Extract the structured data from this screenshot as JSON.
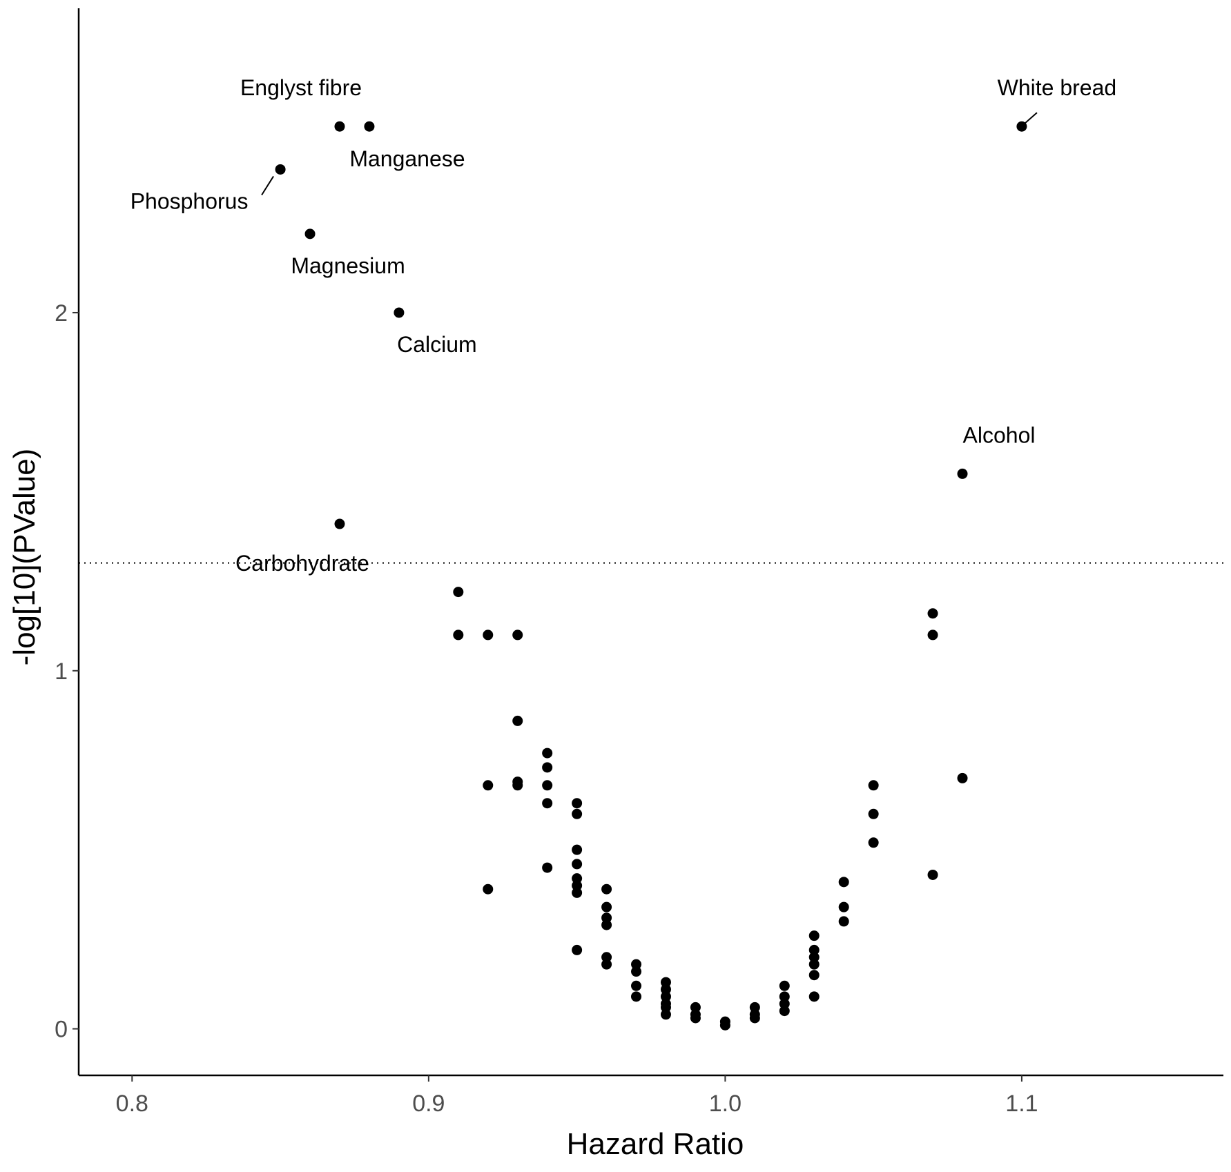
{
  "chart_data": {
    "type": "scatter",
    "title": "",
    "xlabel": "Hazard Ratio",
    "ylabel": "-log[10](PValue)",
    "xlim": [
      0.782,
      1.168
    ],
    "ylim": [
      -0.13,
      2.85
    ],
    "xticks": [
      0.8,
      0.9,
      1.0,
      1.1
    ],
    "xtick_labels": [
      "0.8",
      "0.9",
      "1.0",
      "1.1"
    ],
    "yticks": [
      0,
      1,
      2
    ],
    "ytick_labels": [
      "0",
      "1",
      "2"
    ],
    "grid": false,
    "threshold_line": {
      "y": 1.301,
      "style": "dotted"
    },
    "colors": {
      "points": "#000000",
      "axes": "#000000",
      "ticks": "#4d4d4d"
    },
    "labeled_points": [
      {
        "label": "Englyst fibre",
        "x": 0.87,
        "y": 2.52
      },
      {
        "label": "Manganese",
        "x": 0.88,
        "y": 2.52
      },
      {
        "label": "Phosphorus",
        "x": 0.85,
        "y": 2.4
      },
      {
        "label": "Magnesium",
        "x": 0.86,
        "y": 2.22
      },
      {
        "label": "Calcium",
        "x": 0.89,
        "y": 2.0
      },
      {
        "label": "Carbohydrate",
        "x": 0.87,
        "y": 1.41
      },
      {
        "label": "White bread",
        "x": 1.1,
        "y": 2.52
      },
      {
        "label": "Alcohol",
        "x": 1.08,
        "y": 1.55
      }
    ],
    "points": [
      {
        "x": 0.91,
        "y": 1.22
      },
      {
        "x": 0.91,
        "y": 1.1
      },
      {
        "x": 0.92,
        "y": 1.1
      },
      {
        "x": 0.92,
        "y": 0.68
      },
      {
        "x": 0.92,
        "y": 0.39
      },
      {
        "x": 0.93,
        "y": 1.1
      },
      {
        "x": 0.93,
        "y": 0.86
      },
      {
        "x": 0.93,
        "y": 0.69
      },
      {
        "x": 0.93,
        "y": 0.68
      },
      {
        "x": 0.94,
        "y": 0.77
      },
      {
        "x": 0.94,
        "y": 0.73
      },
      {
        "x": 0.94,
        "y": 0.68
      },
      {
        "x": 0.94,
        "y": 0.63
      },
      {
        "x": 0.94,
        "y": 0.45
      },
      {
        "x": 0.95,
        "y": 0.63
      },
      {
        "x": 0.95,
        "y": 0.6
      },
      {
        "x": 0.95,
        "y": 0.5
      },
      {
        "x": 0.95,
        "y": 0.46
      },
      {
        "x": 0.95,
        "y": 0.42
      },
      {
        "x": 0.95,
        "y": 0.4
      },
      {
        "x": 0.95,
        "y": 0.38
      },
      {
        "x": 0.95,
        "y": 0.22
      },
      {
        "x": 0.96,
        "y": 0.39
      },
      {
        "x": 0.96,
        "y": 0.34
      },
      {
        "x": 0.96,
        "y": 0.31
      },
      {
        "x": 0.96,
        "y": 0.29
      },
      {
        "x": 0.96,
        "y": 0.2
      },
      {
        "x": 0.96,
        "y": 0.18
      },
      {
        "x": 0.97,
        "y": 0.18
      },
      {
        "x": 0.97,
        "y": 0.16
      },
      {
        "x": 0.97,
        "y": 0.12
      },
      {
        "x": 0.97,
        "y": 0.09
      },
      {
        "x": 0.98,
        "y": 0.13
      },
      {
        "x": 0.98,
        "y": 0.11
      },
      {
        "x": 0.98,
        "y": 0.09
      },
      {
        "x": 0.98,
        "y": 0.07
      },
      {
        "x": 0.98,
        "y": 0.06
      },
      {
        "x": 0.98,
        "y": 0.04
      },
      {
        "x": 0.99,
        "y": 0.06
      },
      {
        "x": 0.99,
        "y": 0.04
      },
      {
        "x": 0.99,
        "y": 0.03
      },
      {
        "x": 1.0,
        "y": 0.02
      },
      {
        "x": 1.0,
        "y": 0.01
      },
      {
        "x": 1.01,
        "y": 0.06
      },
      {
        "x": 1.01,
        "y": 0.04
      },
      {
        "x": 1.01,
        "y": 0.03
      },
      {
        "x": 1.02,
        "y": 0.12
      },
      {
        "x": 1.02,
        "y": 0.09
      },
      {
        "x": 1.02,
        "y": 0.07
      },
      {
        "x": 1.02,
        "y": 0.05
      },
      {
        "x": 1.03,
        "y": 0.26
      },
      {
        "x": 1.03,
        "y": 0.22
      },
      {
        "x": 1.03,
        "y": 0.2
      },
      {
        "x": 1.03,
        "y": 0.18
      },
      {
        "x": 1.03,
        "y": 0.15
      },
      {
        "x": 1.03,
        "y": 0.09
      },
      {
        "x": 1.04,
        "y": 0.41
      },
      {
        "x": 1.04,
        "y": 0.34
      },
      {
        "x": 1.04,
        "y": 0.3
      },
      {
        "x": 1.05,
        "y": 0.68
      },
      {
        "x": 1.05,
        "y": 0.6
      },
      {
        "x": 1.05,
        "y": 0.52
      },
      {
        "x": 1.07,
        "y": 1.16
      },
      {
        "x": 1.07,
        "y": 1.1
      },
      {
        "x": 1.07,
        "y": 0.43
      },
      {
        "x": 1.08,
        "y": 0.7
      }
    ]
  }
}
